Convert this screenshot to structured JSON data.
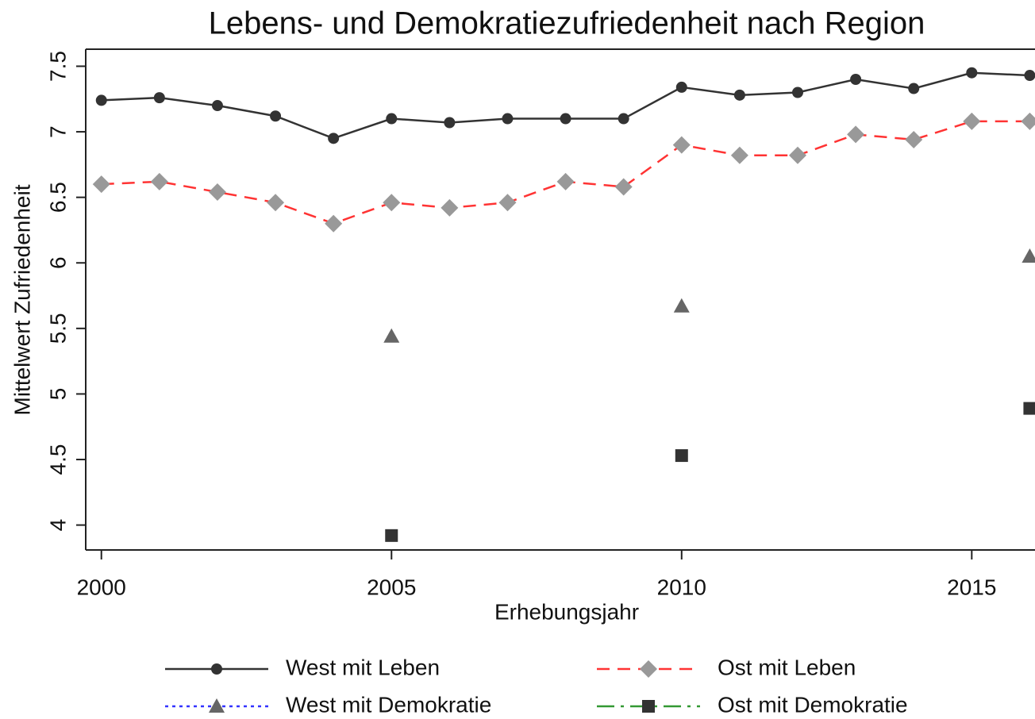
{
  "chart_data": {
    "type": "line",
    "title": "Lebens- und Demokratiezufriedenheit nach Region",
    "x_label": "Erhebungsjahr",
    "y_label": "Mittelwert Zufriedenheit",
    "x": [
      2000,
      2001,
      2002,
      2003,
      2004,
      2005,
      2006,
      2007,
      2008,
      2009,
      2010,
      2011,
      2012,
      2013,
      2014,
      2015,
      2016
    ],
    "series": [
      {
        "name": "West mit Leben",
        "color": "#333333",
        "marker_color": "#333333",
        "marker": "circle",
        "line_style": "solid",
        "values": [
          7.24,
          7.26,
          7.2,
          7.12,
          6.95,
          7.1,
          7.07,
          7.1,
          7.1,
          7.1,
          7.34,
          7.28,
          7.3,
          7.4,
          7.33,
          7.45,
          7.43
        ]
      },
      {
        "name": "Ost mit Leben",
        "color": "#ff3333",
        "marker_color": "#999999",
        "marker": "diamond",
        "line_style": "dashed",
        "values": [
          6.6,
          6.62,
          6.54,
          6.46,
          6.3,
          6.46,
          6.42,
          6.46,
          6.62,
          6.58,
          6.9,
          6.82,
          6.82,
          6.98,
          6.94,
          7.08,
          7.08
        ]
      },
      {
        "name": "West mit Demokratie",
        "color": "#3333ff",
        "marker_color": "#666666",
        "marker": "triangle",
        "line_style": "dotted",
        "values": [
          null,
          null,
          null,
          null,
          null,
          5.44,
          null,
          null,
          null,
          null,
          5.67,
          null,
          null,
          null,
          null,
          null,
          6.05
        ]
      },
      {
        "name": "Ost mit Demokratie",
        "color": "#339933",
        "marker_color": "#333333",
        "marker": "square",
        "line_style": "dashdot",
        "values": [
          null,
          null,
          null,
          null,
          null,
          3.92,
          null,
          null,
          null,
          null,
          4.53,
          null,
          null,
          null,
          null,
          null,
          4.89
        ]
      }
    ],
    "xlim": [
      1999.73,
      2016.09
    ],
    "xticks": [
      2000,
      2005,
      2010,
      2015
    ],
    "ylim": [
      3.81,
      7.63
    ],
    "yticks": [
      4,
      4.5,
      5,
      5.5,
      6,
      6.5,
      7,
      7.5
    ],
    "grid": false,
    "legend_position": "bottom"
  }
}
